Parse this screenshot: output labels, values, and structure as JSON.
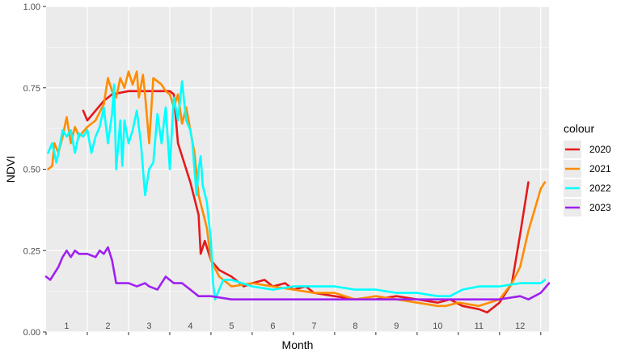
{
  "chart_data": {
    "type": "line",
    "xlabel": "Month",
    "ylabel": "NDVI",
    "ylim": [
      0,
      1
    ],
    "xlim": [
      0.5,
      12.7
    ],
    "grid": true,
    "y_ticks": [
      {
        "value": 0,
        "label": "0.00"
      },
      {
        "value": 0.25,
        "label": "0.25"
      },
      {
        "value": 0.5,
        "label": "0.50"
      },
      {
        "value": 0.75,
        "label": "0.75"
      },
      {
        "value": 1,
        "label": "1.00"
      }
    ],
    "x_ticks": [
      "1",
      "2",
      "3",
      "4",
      "5",
      "6",
      "7",
      "8",
      "9",
      "10",
      "11",
      "12"
    ],
    "legend": {
      "title": "colour",
      "placement": "right"
    },
    "series": [
      {
        "name": "2020",
        "color": "#e41a1c",
        "x": [
          1.4,
          1.5,
          1.9,
          2.1,
          2.5,
          3.0,
          3.5,
          3.6,
          3.7,
          4.0,
          4.2,
          4.25,
          4.35,
          4.5,
          4.7,
          5.0,
          5.3,
          5.5,
          5.8,
          6.0,
          6.3,
          6.5,
          6.8,
          7.0,
          7.5,
          8.0,
          8.5,
          9.0,
          9.5,
          10.0,
          10.3,
          10.6,
          11.0,
          11.2,
          11.5,
          11.8,
          12.0,
          12.2
        ],
        "y": [
          0.68,
          0.65,
          0.71,
          0.73,
          0.74,
          0.74,
          0.74,
          0.73,
          0.58,
          0.46,
          0.36,
          0.24,
          0.28,
          0.22,
          0.19,
          0.17,
          0.14,
          0.15,
          0.16,
          0.14,
          0.15,
          0.13,
          0.14,
          0.12,
          0.11,
          0.1,
          0.1,
          0.11,
          0.1,
          0.09,
          0.1,
          0.08,
          0.07,
          0.06,
          0.09,
          0.15,
          0.3,
          0.46
        ]
      },
      {
        "name": "2021",
        "color": "#ff8c00",
        "x": [
          0.55,
          0.65,
          0.7,
          0.8,
          0.9,
          1.0,
          1.1,
          1.2,
          1.3,
          1.5,
          1.7,
          1.9,
          2.0,
          2.1,
          2.2,
          2.3,
          2.4,
          2.5,
          2.6,
          2.7,
          2.75,
          2.85,
          2.9,
          3.0,
          3.1,
          3.3,
          3.4,
          3.5,
          3.6,
          3.7,
          3.8,
          3.9,
          4.0,
          4.1,
          4.2,
          4.4,
          4.5,
          4.7,
          5.0,
          5.5,
          6.0,
          6.5,
          7.0,
          7.5,
          8.0,
          8.5,
          9.0,
          9.5,
          10.0,
          10.2,
          10.5,
          11.0,
          11.5,
          11.8,
          12.0,
          12.2,
          12.5,
          12.6
        ],
        "y": [
          0.5,
          0.51,
          0.58,
          0.55,
          0.6,
          0.66,
          0.58,
          0.63,
          0.6,
          0.63,
          0.65,
          0.7,
          0.78,
          0.74,
          0.72,
          0.78,
          0.75,
          0.8,
          0.76,
          0.8,
          0.72,
          0.79,
          0.73,
          0.58,
          0.78,
          0.76,
          0.74,
          0.73,
          0.69,
          0.73,
          0.64,
          0.69,
          0.62,
          0.55,
          0.42,
          0.32,
          0.22,
          0.17,
          0.14,
          0.15,
          0.14,
          0.13,
          0.12,
          0.12,
          0.1,
          0.11,
          0.1,
          0.09,
          0.08,
          0.08,
          0.09,
          0.08,
          0.1,
          0.15,
          0.2,
          0.31,
          0.44,
          0.46
        ]
      },
      {
        "name": "2022",
        "color": "#00ffff",
        "x": [
          0.55,
          0.65,
          0.75,
          0.8,
          0.9,
          1.0,
          1.1,
          1.2,
          1.3,
          1.4,
          1.5,
          1.6,
          1.7,
          1.8,
          1.9,
          2.0,
          2.1,
          2.15,
          2.2,
          2.3,
          2.35,
          2.4,
          2.5,
          2.6,
          2.7,
          2.8,
          2.9,
          3.0,
          3.1,
          3.2,
          3.3,
          3.4,
          3.5,
          3.6,
          3.7,
          3.8,
          3.9,
          4.0,
          4.05,
          4.1,
          4.15,
          4.2,
          4.25,
          4.3,
          4.4,
          4.5,
          4.55,
          4.6,
          4.7,
          4.8,
          5.0,
          5.5,
          6.0,
          6.5,
          7.0,
          7.5,
          8.0,
          8.5,
          9.0,
          9.5,
          10.0,
          10.3,
          10.6,
          11.0,
          11.5,
          12.0,
          12.5,
          12.6
        ],
        "y": [
          0.55,
          0.58,
          0.52,
          0.55,
          0.62,
          0.6,
          0.62,
          0.55,
          0.61,
          0.6,
          0.62,
          0.55,
          0.6,
          0.63,
          0.69,
          0.58,
          0.67,
          0.76,
          0.5,
          0.65,
          0.51,
          0.65,
          0.58,
          0.62,
          0.68,
          0.58,
          0.42,
          0.5,
          0.52,
          0.67,
          0.58,
          0.69,
          0.5,
          0.72,
          0.65,
          0.77,
          0.65,
          0.62,
          0.58,
          0.5,
          0.42,
          0.5,
          0.54,
          0.45,
          0.4,
          0.28,
          0.15,
          0.1,
          0.13,
          0.16,
          0.16,
          0.14,
          0.13,
          0.14,
          0.14,
          0.14,
          0.13,
          0.13,
          0.12,
          0.12,
          0.11,
          0.11,
          0.13,
          0.14,
          0.14,
          0.15,
          0.15,
          0.16
        ]
      },
      {
        "name": "2023",
        "color": "#a020f0",
        "x": [
          0.5,
          0.6,
          0.7,
          0.8,
          0.9,
          1.0,
          1.1,
          1.2,
          1.3,
          1.5,
          1.7,
          1.8,
          1.9,
          2.0,
          2.1,
          2.2,
          2.3,
          2.5,
          2.7,
          2.9,
          3.0,
          3.2,
          3.3,
          3.4,
          3.6,
          3.8,
          4.0,
          4.2,
          4.5,
          5.0,
          5.5,
          6.0,
          6.5,
          7.0,
          7.5,
          8.0,
          8.5,
          9.0,
          9.5,
          10.0,
          10.5,
          11.0,
          11.5,
          12.0,
          12.2,
          12.5,
          12.7
        ],
        "y": [
          0.17,
          0.16,
          0.18,
          0.2,
          0.23,
          0.25,
          0.23,
          0.25,
          0.24,
          0.24,
          0.23,
          0.25,
          0.24,
          0.26,
          0.22,
          0.15,
          0.15,
          0.15,
          0.14,
          0.15,
          0.14,
          0.13,
          0.15,
          0.17,
          0.15,
          0.15,
          0.13,
          0.11,
          0.11,
          0.1,
          0.1,
          0.1,
          0.1,
          0.1,
          0.1,
          0.1,
          0.1,
          0.1,
          0.1,
          0.1,
          0.1,
          0.1,
          0.1,
          0.11,
          0.1,
          0.12,
          0.15
        ]
      }
    ]
  }
}
